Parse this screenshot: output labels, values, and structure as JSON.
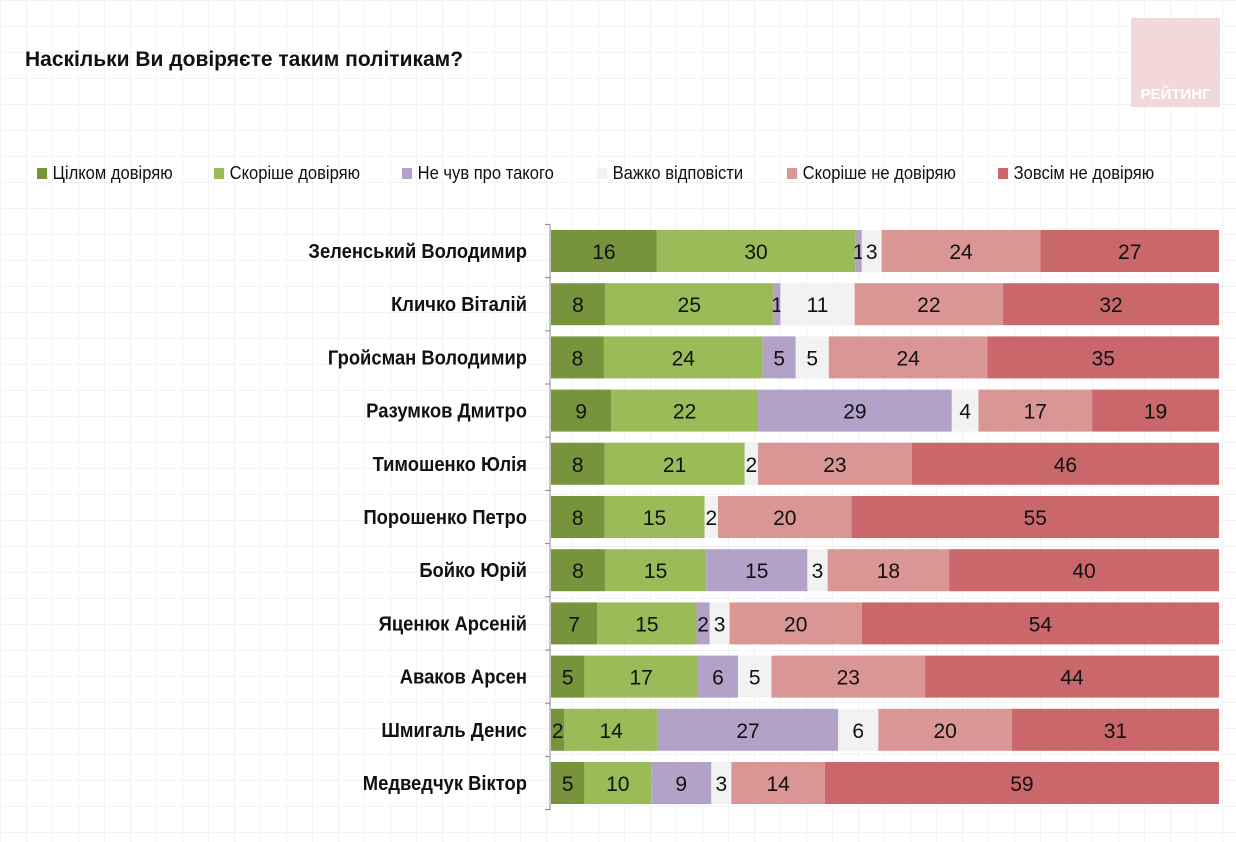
{
  "title": "Наскільки Ви довіряєте таким політикам?",
  "logo_text": "РЕЙТИНГ",
  "chart_data": {
    "type": "bar",
    "orientation": "horizontal",
    "stacked": "100%",
    "title": "Наскільки Ви довіряєте таким політикам?",
    "legend_position": "top",
    "series": [
      {
        "name": "Цілком довіряю",
        "color": "#77933c",
        "values": [
          16,
          8,
          8,
          9,
          8,
          8,
          8,
          7,
          5,
          2,
          5
        ]
      },
      {
        "name": "Скоріше довіряю",
        "color": "#9bbb59",
        "values": [
          30,
          25,
          24,
          22,
          21,
          15,
          15,
          15,
          17,
          14,
          10
        ]
      },
      {
        "name": "Не чув про такого",
        "color": "#b3a2c7",
        "values": [
          1,
          1,
          5,
          29,
          null,
          null,
          15,
          2,
          6,
          27,
          9
        ]
      },
      {
        "name": "Важко відповісти",
        "color": "#f2f2f2",
        "values": [
          3,
          11,
          5,
          4,
          2,
          2,
          3,
          3,
          5,
          6,
          3
        ]
      },
      {
        "name": "Скоріше не довіряю",
        "color": "#d99694",
        "values": [
          24,
          22,
          24,
          17,
          23,
          20,
          18,
          20,
          23,
          20,
          14
        ]
      },
      {
        "name": "Зовсім не довіряю",
        "color": "#c9676a",
        "values": [
          27,
          32,
          35,
          19,
          46,
          55,
          40,
          54,
          44,
          31,
          59
        ]
      }
    ],
    "categories": [
      "Зеленський Володимир",
      "Кличко Віталій",
      "Гройсман Володимир",
      "Разумков Дмитро",
      "Тимошенко Юлія",
      "Порошенко Петро",
      "Бойко Юрій",
      "Яценюк Арсеній",
      "Аваков Арсен",
      "Шмигаль Денис",
      "Медведчук Віктор"
    ]
  }
}
